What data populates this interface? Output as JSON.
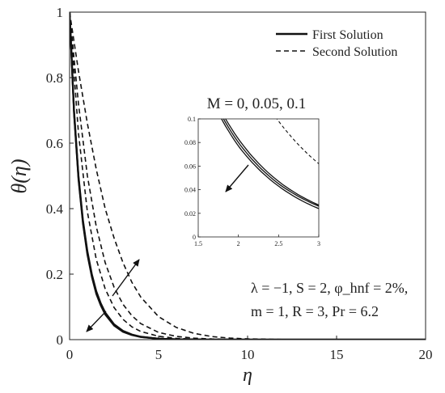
{
  "chart_data": {
    "type": "line",
    "xlabel": "η",
    "ylabel": "θ(η)",
    "xlim": [
      0,
      20
    ],
    "ylim": [
      0,
      1
    ],
    "xticks": [
      "0",
      "5",
      "10",
      "15",
      "20"
    ],
    "yticks": [
      "0",
      "0.2",
      "0.4",
      "0.6",
      "0.8",
      "1"
    ],
    "legend_position": "top-right",
    "legend": [
      {
        "label": "First Solution",
        "style": "solid"
      },
      {
        "label": "Second Solution",
        "style": "dashed"
      }
    ],
    "series": [
      {
        "name": "First Solution",
        "style": "solid",
        "M": 0,
        "x": [
          0,
          0.25,
          0.5,
          0.75,
          1.0,
          1.25,
          1.5,
          1.75,
          2.0,
          2.5,
          3.0,
          3.5,
          4.0,
          5.0,
          6.0,
          8.0,
          10.0,
          20.0
        ],
        "y": [
          1.0,
          0.7,
          0.5,
          0.365,
          0.27,
          0.2,
          0.148,
          0.111,
          0.083,
          0.047,
          0.027,
          0.0155,
          0.009,
          0.003,
          0.001,
          0.0,
          0.0,
          0.0
        ]
      },
      {
        "name": "First Solution",
        "style": "solid",
        "M": 0.05,
        "x": [
          0,
          0.25,
          0.5,
          0.75,
          1.0,
          1.25,
          1.5,
          1.75,
          2.0,
          2.5,
          3.0,
          3.5,
          4.0,
          5.0,
          6.0,
          8.0,
          10.0,
          20.0
        ],
        "y": [
          1.0,
          0.695,
          0.495,
          0.36,
          0.265,
          0.196,
          0.144,
          0.108,
          0.08,
          0.045,
          0.026,
          0.015,
          0.0085,
          0.0028,
          0.001,
          0.0,
          0.0,
          0.0
        ]
      },
      {
        "name": "First Solution",
        "style": "solid",
        "M": 0.1,
        "x": [
          0,
          0.25,
          0.5,
          0.75,
          1.0,
          1.25,
          1.5,
          1.75,
          2.0,
          2.5,
          3.0,
          3.5,
          4.0,
          5.0,
          6.0,
          8.0,
          10.0,
          20.0
        ],
        "y": [
          1.0,
          0.69,
          0.49,
          0.355,
          0.26,
          0.192,
          0.14,
          0.105,
          0.077,
          0.043,
          0.024,
          0.014,
          0.008,
          0.0026,
          0.0009,
          0.0,
          0.0,
          0.0
        ]
      },
      {
        "name": "Second Solution",
        "style": "dashed",
        "M": 0,
        "x": [
          0,
          0.5,
          1.0,
          1.5,
          2.0,
          2.5,
          3.0,
          3.5,
          4.0,
          5.0,
          6.0,
          7.0,
          8.0,
          9.0,
          10.0,
          12.0,
          14.0,
          20.0
        ],
        "y": [
          1.0,
          0.63,
          0.39,
          0.245,
          0.155,
          0.098,
          0.062,
          0.039,
          0.025,
          0.01,
          0.004,
          0.0015,
          0.0006,
          0.0002,
          0.0,
          0.0,
          0.0,
          0.0
        ]
      },
      {
        "name": "Second Solution",
        "style": "dashed",
        "M": 0.05,
        "x": [
          0,
          0.5,
          1.0,
          1.5,
          2.0,
          2.5,
          3.0,
          3.5,
          4.0,
          5.0,
          6.0,
          7.0,
          8.0,
          9.0,
          10.0,
          12.0,
          14.0,
          20.0
        ],
        "y": [
          1.0,
          0.72,
          0.5,
          0.345,
          0.235,
          0.16,
          0.108,
          0.073,
          0.049,
          0.022,
          0.0098,
          0.0044,
          0.002,
          0.0009,
          0.0004,
          0.0001,
          0.0,
          0.0
        ]
      },
      {
        "name": "Second Solution",
        "style": "dashed",
        "M": 0.1,
        "x": [
          0,
          0.5,
          1.0,
          1.5,
          2.0,
          2.5,
          3.0,
          3.5,
          4.0,
          5.0,
          6.0,
          7.0,
          8.0,
          9.0,
          10.0,
          12.0,
          14.0,
          20.0
        ],
        "y": [
          1.0,
          0.82,
          0.66,
          0.52,
          0.4,
          0.31,
          0.235,
          0.175,
          0.13,
          0.07,
          0.037,
          0.019,
          0.0095,
          0.0047,
          0.0023,
          0.0005,
          0.0001,
          0.0
        ]
      }
    ],
    "inset": {
      "title": "M = 0, 0.05, 0.1",
      "xlim": [
        1.5,
        3
      ],
      "ylim": [
        0,
        0.1
      ],
      "xticks": [
        "1.5",
        "2",
        "2.5",
        "3"
      ],
      "yticks": [
        "0",
        "0.02",
        "0.04",
        "0.06",
        "0.08",
        "0.1"
      ]
    },
    "annotations": {
      "params_line1": "λ = −1, S = 2, φ_hnf = 2%,",
      "params_line2": "m = 1, R = 3, Pr = 6.2"
    }
  }
}
